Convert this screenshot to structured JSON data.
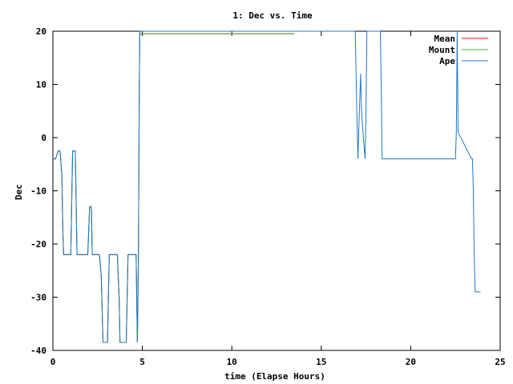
{
  "chart_data": {
    "type": "line",
    "title": "1: Dec vs. Time",
    "xlabel": "time (Elapse Hours)",
    "ylabel": "Dec",
    "xlim": [
      0,
      25
    ],
    "ylim": [
      -40,
      20
    ],
    "xticks": [
      0,
      5,
      10,
      15,
      20,
      25
    ],
    "yticks": [
      -40,
      -30,
      -20,
      -10,
      0,
      10,
      20
    ],
    "grid": false,
    "legend_position": "top-right",
    "series": [
      {
        "name": "Mean",
        "color": "#e41a1c",
        "x": [
          0.0,
          0.15,
          0.3,
          0.4,
          0.5,
          0.55,
          0.6,
          1.0,
          1.1,
          1.25,
          1.35,
          1.95,
          2.05,
          2.15,
          2.2,
          2.6,
          2.7,
          2.8,
          3.05,
          3.15,
          3.25,
          3.6,
          3.7,
          3.75,
          4.1,
          4.2,
          4.3,
          4.65,
          4.72,
          4.78,
          4.82,
          4.85,
          4.88,
          13.5
        ],
        "y": [
          -4,
          -4,
          -2.5,
          -2.5,
          -7,
          -17,
          -22,
          -22,
          -2.5,
          -2.5,
          -22,
          -22,
          -13,
          -13,
          -22,
          -22,
          -26,
          -38.5,
          -38.5,
          -22,
          -22,
          -22,
          -30,
          -38.5,
          -38.5,
          -22,
          -22,
          -22,
          -38.5,
          -22,
          5,
          19.5,
          19.5,
          19.5
        ]
      },
      {
        "name": "Mount",
        "color": "#4daf4a",
        "x": [
          0.0,
          0.15,
          0.3,
          0.4,
          0.5,
          0.55,
          0.6,
          1.0,
          1.1,
          1.25,
          1.35,
          1.95,
          2.05,
          2.15,
          2.2,
          2.6,
          2.7,
          2.8,
          3.05,
          3.15,
          3.25,
          3.6,
          3.7,
          3.75,
          4.1,
          4.2,
          4.3,
          4.65,
          4.72,
          4.78,
          4.82,
          4.85,
          4.88,
          13.5
        ],
        "y": [
          -4,
          -4,
          -2.5,
          -2.5,
          -7,
          -17,
          -22,
          -22,
          -2.5,
          -2.5,
          -22,
          -22,
          -13,
          -13,
          -22,
          -22,
          -26,
          -38.5,
          -38.5,
          -22,
          -22,
          -22,
          -30,
          -38.5,
          -38.5,
          -22,
          -22,
          -22,
          -38.5,
          -22,
          5,
          19.5,
          19.5,
          19.5
        ]
      },
      {
        "name": "Ape",
        "color": "#1f78c8",
        "x": [
          0.0,
          0.15,
          0.3,
          0.4,
          0.5,
          0.55,
          0.6,
          1.0,
          1.1,
          1.25,
          1.35,
          1.95,
          2.05,
          2.15,
          2.2,
          2.6,
          2.7,
          2.8,
          3.05,
          3.15,
          3.25,
          3.6,
          3.7,
          3.75,
          4.1,
          4.2,
          4.3,
          4.65,
          4.72,
          4.78,
          4.82,
          4.85,
          4.88,
          13.5,
          16.9,
          17.0,
          17.05,
          17.1,
          17.2,
          17.25,
          17.35,
          17.45,
          17.5,
          17.55,
          17.6,
          17.7,
          17.8,
          17.9,
          18.3,
          18.35,
          18.4,
          22.45,
          22.5,
          22.55,
          22.6,
          22.65,
          23.4,
          23.45,
          23.5,
          23.55,
          23.6,
          23.7,
          23.9
        ],
        "y": [
          -4,
          -4,
          -2.5,
          -2.5,
          -7,
          -17,
          -22,
          -22,
          -2.5,
          -2.5,
          -22,
          -22,
          -13,
          -13,
          -22,
          -22,
          -26,
          -38.5,
          -38.5,
          -22,
          -22,
          -22,
          -30,
          -38.5,
          -38.5,
          -22,
          -22,
          -22,
          -38.5,
          -22,
          5,
          19.5,
          20,
          20,
          20,
          3,
          -4,
          2,
          12,
          5,
          0,
          -4,
          5,
          20,
          20,
          20,
          20,
          20,
          20,
          10,
          -4,
          -4,
          -4,
          1,
          20,
          1,
          -4,
          -4,
          -10,
          -22,
          -29,
          -29,
          -29
        ]
      }
    ]
  }
}
